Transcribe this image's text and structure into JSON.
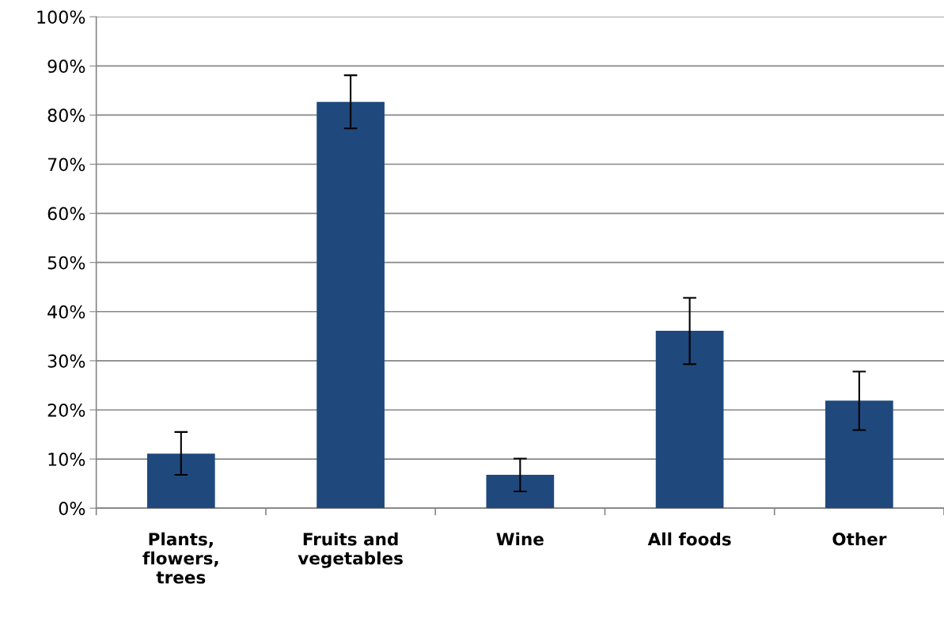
{
  "chart_data": {
    "type": "bar",
    "categories": [
      "Plants,\nflowers,\ntrees",
      "Fruits and\nvegetables",
      "Wine",
      "All foods",
      "Other"
    ],
    "values": [
      11.1,
      82.7,
      6.8,
      36.1,
      21.9
    ],
    "errors": [
      [
        6.8,
        15.5
      ],
      [
        77.3,
        88.1
      ],
      [
        3.4,
        10.1
      ],
      [
        29.3,
        42.8
      ],
      [
        15.9,
        27.8
      ]
    ],
    "color": "#1f497d",
    "ylim": [
      0,
      100
    ],
    "yticks": [
      {
        "value": 0,
        "label": "0%"
      },
      {
        "value": 10,
        "label": "10%"
      },
      {
        "value": 20,
        "label": "20%"
      },
      {
        "value": 30,
        "label": "30%"
      },
      {
        "value": 40,
        "label": "40%"
      },
      {
        "value": 50,
        "label": "50%"
      },
      {
        "value": 60,
        "label": "60%"
      },
      {
        "value": 70,
        "label": "70%"
      },
      {
        "value": 80,
        "label": "80%"
      },
      {
        "value": 90,
        "label": "90%"
      },
      {
        "value": 100,
        "label": "100%"
      }
    ],
    "grid": "y",
    "legend": false
  }
}
